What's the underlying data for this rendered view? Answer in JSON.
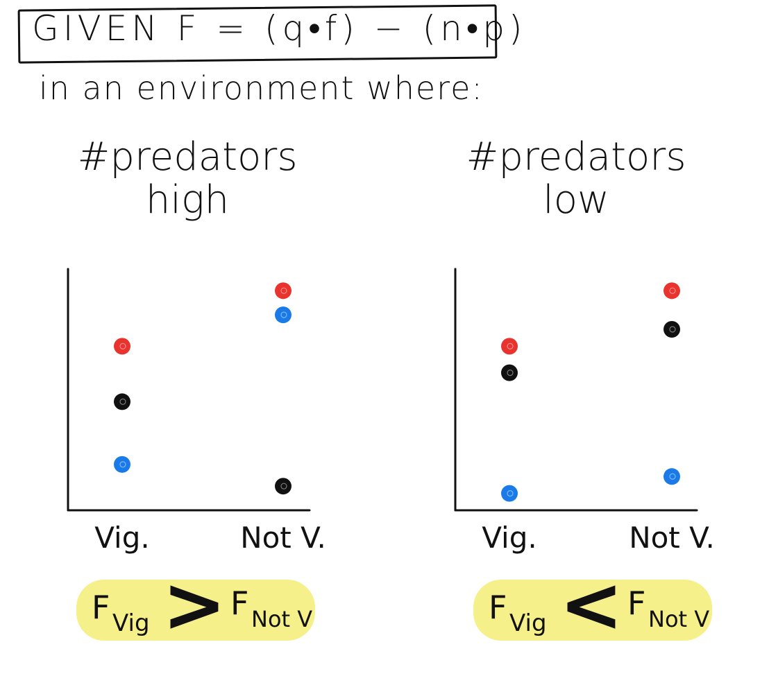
{
  "header": {
    "title": "GIVEN F = (q•f) − (n•p)",
    "subtitle": "in an environment where:"
  },
  "chart_data": [
    {
      "type": "scatter",
      "title": "#predators high",
      "categories": [
        "Vig.",
        "Not V."
      ],
      "series": [
        {
          "color": "#e8332f",
          "values": [
            6.8,
            9.1
          ]
        },
        {
          "color": "#1a7be8",
          "values": [
            1.9,
            8.1
          ]
        },
        {
          "color": "#111111",
          "values": [
            4.5,
            1.0
          ]
        }
      ],
      "result": {
        "left": "F",
        "left_sub": "Vig",
        "op": ">",
        "right": "F",
        "right_sub": "Not V"
      }
    },
    {
      "type": "scatter",
      "title": "#predators low",
      "categories": [
        "Vig.",
        "Not V."
      ],
      "series": [
        {
          "color": "#e8332f",
          "values": [
            6.8,
            9.1
          ]
        },
        {
          "color": "#111111",
          "values": [
            5.7,
            7.5
          ]
        },
        {
          "color": "#1a7be8",
          "values": [
            0.7,
            1.4
          ]
        }
      ],
      "result": {
        "left": "F",
        "left_sub": "Vig",
        "op": "<",
        "right": "F",
        "right_sub": "Not V"
      }
    }
  ]
}
